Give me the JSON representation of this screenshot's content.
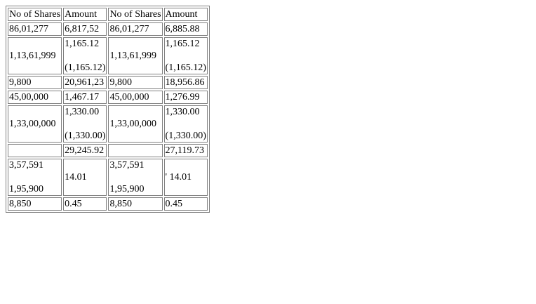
{
  "table": {
    "headers": [
      "No of Shares",
      "Amount",
      "No of Shares",
      "Amount"
    ],
    "rows": [
      {
        "shares1": [
          "86,01,277"
        ],
        "amount1": [
          "6,817,52"
        ],
        "shares2": [
          "86,01,277"
        ],
        "amount2": [
          "6,885.88"
        ]
      },
      {
        "shares1": [
          "1,13,61,999"
        ],
        "amount1": [
          "1,165.12",
          "",
          "(1,165.12)"
        ],
        "shares2": [
          "1,13,61,999"
        ],
        "amount2": [
          "1,165.12",
          "",
          "(1,165.12)"
        ]
      },
      {
        "shares1": [
          "9,800"
        ],
        "amount1": [
          "20,961,23"
        ],
        "shares2": [
          "9,800"
        ],
        "amount2": [
          "18,956.86"
        ]
      },
      {
        "shares1": [
          "45,00,000"
        ],
        "amount1": [
          "1,467.17"
        ],
        "shares2": [
          "45,00,000"
        ],
        "amount2": [
          "1,276.99"
        ]
      },
      {
        "shares1": [
          "1,33,00,000"
        ],
        "amount1": [
          "1,330.00",
          "",
          "(1,330.00)"
        ],
        "shares2": [
          "1,33,00,000"
        ],
        "amount2": [
          "1,330.00",
          "",
          "(1,330.00)"
        ]
      },
      {
        "shares1": [
          ""
        ],
        "amount1": [
          "29,245.92"
        ],
        "shares2": [
          ""
        ],
        "amount2": [
          "27,119.73"
        ]
      },
      {
        "shares1": [
          "3,57,591",
          "",
          "1,95,900"
        ],
        "amount1": [
          "14.01"
        ],
        "shares2": [
          "3,57,591",
          "",
          "1,95,900"
        ],
        "amount2": [
          "' 14.01"
        ]
      },
      {
        "shares1": [
          "8,850"
        ],
        "amount1": [
          "0.45"
        ],
        "shares2": [
          "8,850"
        ],
        "amount2": [
          "0.45"
        ]
      }
    ]
  }
}
